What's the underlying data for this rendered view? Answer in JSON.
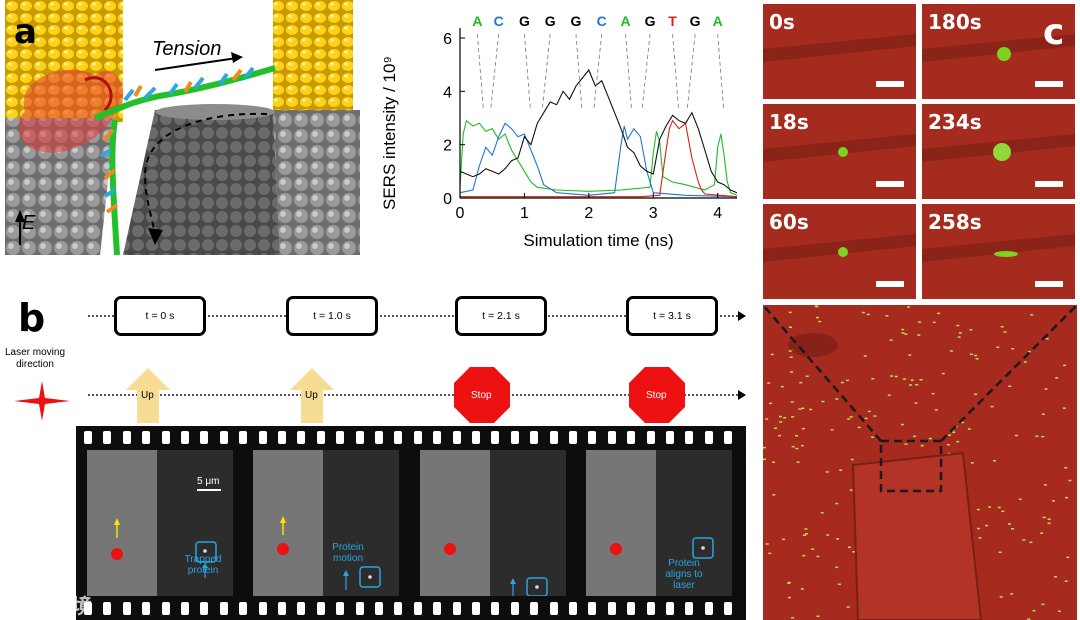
{
  "panel_a": {
    "letter": "a",
    "tension_label": "Tension",
    "field_label": "E"
  },
  "chart_data": {
    "type": "line",
    "title": "",
    "xlabel": "Simulation time (ns)",
    "ylabel": "SERS intensity / 10⁹",
    "xlim": [
      0,
      4.3
    ],
    "ylim": [
      0,
      6
    ],
    "xticks": [
      "0",
      "1",
      "2",
      "3",
      "4"
    ],
    "yticks": [
      "0",
      "2",
      "4",
      "6"
    ],
    "sequence": [
      "A",
      "C",
      "G",
      "G",
      "G",
      "C",
      "A",
      "G",
      "T",
      "G",
      "A"
    ],
    "sequence_colors": [
      "#22bb22",
      "#2277cc",
      "#000000",
      "#000000",
      "#000000",
      "#2277cc",
      "#22bb22",
      "#000000",
      "#dd2211",
      "#000000",
      "#22bb22"
    ],
    "sequence_x": [
      0.27,
      0.6,
      1.0,
      1.4,
      1.8,
      2.2,
      2.57,
      2.95,
      3.3,
      3.65,
      4.0
    ],
    "series": [
      {
        "color": "#22bb22",
        "x": [
          0.0,
          0.05,
          0.1,
          0.2,
          0.3,
          0.4,
          0.5,
          0.6,
          0.7,
          0.8,
          0.9,
          1.0,
          1.1,
          1.2,
          1.5,
          2.0,
          2.5,
          2.95,
          3.0,
          3.05,
          3.1,
          3.15,
          3.3,
          3.5,
          3.8,
          3.95,
          4.0,
          4.05,
          4.1,
          4.15,
          4.2,
          4.3
        ],
        "y": [
          0.4,
          2.4,
          2.9,
          2.7,
          2.8,
          2.5,
          2.6,
          2.2,
          2.4,
          1.8,
          1.4,
          1.0,
          0.6,
          0.4,
          0.3,
          0.25,
          0.3,
          0.4,
          1.7,
          2.5,
          2.1,
          0.8,
          0.6,
          0.5,
          0.3,
          0.5,
          1.9,
          2.4,
          1.6,
          0.6,
          0.2,
          0.1
        ]
      },
      {
        "color": "#2277cc",
        "x": [
          0.0,
          0.2,
          0.3,
          0.4,
          0.5,
          0.6,
          0.7,
          0.8,
          0.9,
          1.0,
          1.1,
          1.2,
          1.3,
          1.5,
          2.0,
          2.4,
          2.5,
          2.55,
          2.6,
          2.7,
          2.8,
          2.9,
          3.0,
          3.5,
          4.3
        ],
        "y": [
          0.2,
          0.3,
          1.2,
          1.9,
          1.6,
          2.3,
          2.8,
          2.6,
          2.3,
          2.4,
          1.8,
          1.2,
          0.5,
          0.2,
          0.1,
          0.2,
          2.0,
          2.7,
          2.2,
          2.6,
          2.3,
          1.0,
          0.2,
          0.1,
          0.05
        ]
      },
      {
        "color": "#dd2211",
        "x": [
          0.0,
          2.8,
          3.1,
          3.2,
          3.25,
          3.3,
          3.4,
          3.5,
          3.6,
          3.7,
          3.75,
          3.8,
          4.3
        ],
        "y": [
          0.05,
          0.05,
          0.1,
          1.8,
          2.6,
          2.9,
          2.6,
          2.8,
          1.5,
          0.6,
          0.3,
          0.15,
          0.05
        ]
      },
      {
        "color": "#111111",
        "x": [
          0.0,
          0.1,
          0.2,
          0.3,
          0.4,
          0.5,
          0.6,
          0.7,
          0.8,
          0.9,
          1.0,
          1.1,
          1.2,
          1.3,
          1.4,
          1.5,
          1.6,
          1.7,
          1.8,
          1.9,
          2.0,
          2.1,
          2.2,
          2.3,
          2.4,
          2.5,
          2.6,
          2.7,
          2.8,
          2.9,
          3.0,
          3.1,
          3.2,
          3.3,
          3.4,
          3.5,
          3.6,
          3.7,
          3.8,
          3.9,
          4.0,
          4.1,
          4.2,
          4.3
        ],
        "y": [
          1.0,
          0.9,
          0.8,
          0.9,
          1.1,
          1.0,
          0.9,
          1.1,
          1.4,
          1.5,
          2.3,
          2.0,
          2.8,
          3.2,
          3.6,
          3.5,
          4.0,
          3.7,
          4.2,
          4.5,
          4.8,
          4.2,
          4.4,
          3.8,
          3.2,
          2.6,
          1.9,
          1.7,
          1.2,
          1.0,
          0.9,
          2.2,
          2.7,
          3.1,
          2.9,
          2.8,
          3.2,
          2.6,
          1.8,
          1.0,
          0.6,
          0.5,
          0.3,
          0.2
        ]
      }
    ]
  },
  "panel_b": {
    "letter": "b",
    "laser_caption": "Laser moving direction",
    "times": [
      "t = 0 s",
      "t = 1.0 s",
      "t = 2.1 s",
      "t = 3.1 s"
    ],
    "signs": [
      "Up",
      "Up",
      "Stop",
      "Stop"
    ],
    "scale_label": "5 μm",
    "frame_labels": [
      "Trapped protein",
      "Protein motion",
      "",
      "Protein aligns to laser"
    ],
    "colors": {
      "up": "#f7dc94",
      "stop": "#ee1111",
      "label": "#2aa4e0",
      "laser": "#ee1111"
    }
  },
  "panel_c": {
    "letter": "c",
    "tile_times": [
      "0s",
      "180s",
      "18s",
      "234s",
      "60s",
      "258s"
    ]
  },
  "watermark": "大数跨境"
}
